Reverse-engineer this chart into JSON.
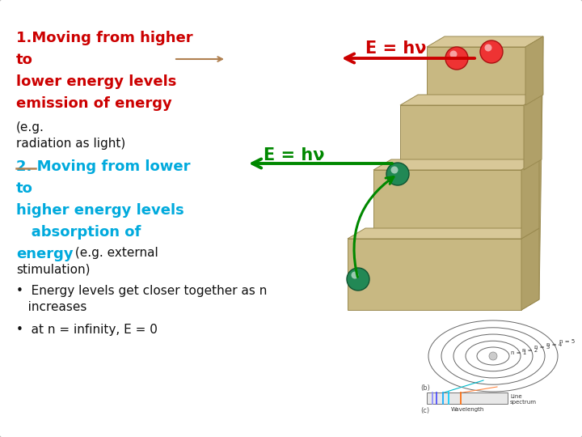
{
  "bg_color": "#ffffff",
  "title_line1": "1.Moving from higher",
  "title_line2": "to",
  "title_line3": "lower energy levels",
  "title_line4": "emission of energy",
  "title_color": "#cc0000",
  "normal_line1": "(e.g.",
  "normal_line2": "radiation as light)",
  "sec2_line1": "2. Moving from lower",
  "sec2_line2": "to",
  "sec2_line3": "higher energy levels",
  "sec2_line4": "   absorption of",
  "sec2_line5": "energy",
  "sec2_color": "#00aadd",
  "overlap_a": " (e.g. external",
  "overlap_b": "stimulation)",
  "bullet1a": "•  Energy levels get closer together as n",
  "bullet1b": "   increases",
  "bullet2": "•  at n = infinity, E = 0",
  "arrow_top_label": "E = hν",
  "arrow_mid_label": "E = hν",
  "arrow_top_color": "#cc0000",
  "arrow_mid_color": "#008800",
  "brown_arrow_color": "#b08050",
  "stair_face": "#c8b882",
  "stair_top": "#d8c898",
  "stair_side": "#b0a068",
  "stair_edge": "#9a8a50",
  "ball_red": "#ee3333",
  "ball_green": "#228855",
  "orbit_color": "#666666"
}
